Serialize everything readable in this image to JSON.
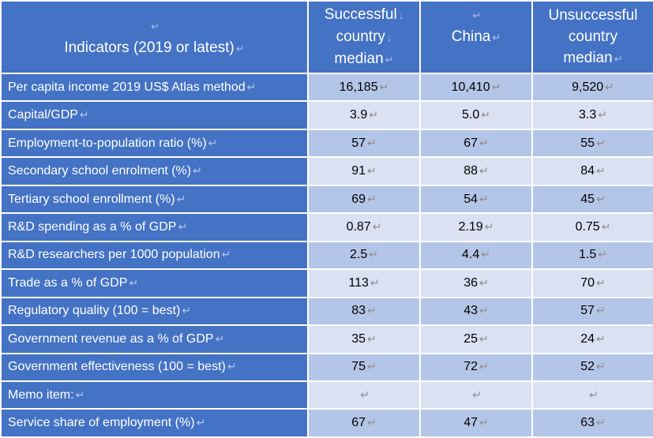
{
  "headers": {
    "top_marks": [
      "↵",
      "↓",
      "↵",
      "↵"
    ],
    "indicator": "Indicators (2019 or latest)",
    "successful": [
      "Successful",
      "country",
      "median"
    ],
    "successful_marks": [
      "↓",
      "↓",
      "↵"
    ],
    "china": "China",
    "unsuccessful": [
      "Unsuccessful",
      "country",
      "median"
    ],
    "mark": "↵"
  },
  "rows": [
    {
      "label": "Per capita income 2019 US$ Atlas method",
      "successful": "16,185",
      "china": "10,410",
      "unsuccessful": "9,520"
    },
    {
      "label": "Capital/GDP",
      "successful": "3.9",
      "china": "5.0",
      "unsuccessful": "3.3"
    },
    {
      "label": "Employment-to-population ratio (%)",
      "successful": "57",
      "china": "67",
      "unsuccessful": "55"
    },
    {
      "label": "Secondary school enrolment (%)",
      "successful": "91",
      "china": "88",
      "unsuccessful": "84"
    },
    {
      "label": "Tertiary school enrollment (%)",
      "successful": "69",
      "china": "54",
      "unsuccessful": "45"
    },
    {
      "label": "R&D spending as a % of GDP",
      "successful": "0.87",
      "china": "2.19",
      "unsuccessful": "0.75"
    },
    {
      "label": "R&D researchers per 1000 population",
      "successful": "2.5",
      "china": "4.4",
      "unsuccessful": "1.5"
    },
    {
      "label": "Trade as a % of GDP",
      "successful": "113",
      "china": "36",
      "unsuccessful": "70"
    },
    {
      "label": "Regulatory quality (100 = best)",
      "successful": "83",
      "china": "43",
      "unsuccessful": "57"
    },
    {
      "label": "Government revenue as a % of GDP",
      "successful": "35",
      "china": "25",
      "unsuccessful": "24"
    },
    {
      "label": "Government effectiveness (100 = best)",
      "successful": "75",
      "china": "72",
      "unsuccessful": "52"
    },
    {
      "label": "Memo item:",
      "successful": "",
      "china": "",
      "unsuccessful": ""
    },
    {
      "label": "Service share of employment (%)",
      "successful": "67",
      "china": "47",
      "unsuccessful": "63"
    }
  ]
}
